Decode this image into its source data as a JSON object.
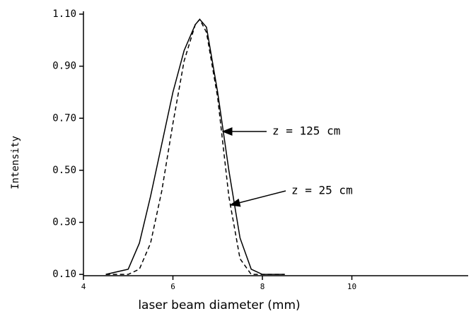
{
  "chart_data": {
    "type": "line",
    "x_label": "laser beam diameter (mm)",
    "y_label": "Intensity",
    "x": [
      4.5,
      5.0,
      5.25,
      5.5,
      5.75,
      6.0,
      6.25,
      6.5,
      6.6,
      6.75,
      7.0,
      7.25,
      7.5,
      7.75,
      8.0,
      8.5
    ],
    "series": [
      {
        "name": "z = 125 cm",
        "color": "#000000",
        "dash": "solid",
        "values": [
          0.1,
          0.12,
          0.22,
          0.4,
          0.6,
          0.8,
          0.96,
          1.06,
          1.08,
          1.05,
          0.8,
          0.5,
          0.24,
          0.12,
          0.1,
          0.1
        ]
      },
      {
        "name": "z = 25 cm",
        "color": "#000000",
        "dash": "dashed",
        "values": [
          0.1,
          0.1,
          0.12,
          0.22,
          0.42,
          0.68,
          0.92,
          1.06,
          1.08,
          1.03,
          0.78,
          0.4,
          0.16,
          0.1,
          0.1,
          0.1
        ]
      }
    ],
    "xlim": [
      4,
      12.6
    ],
    "xticks": [
      4,
      6,
      8,
      10
    ],
    "ylim": [
      0.095,
      1.1
    ],
    "yticks": [
      {
        "value": 0.1,
        "label": "0.10"
      },
      {
        "value": 0.3,
        "label": "0.30"
      },
      {
        "value": 0.5,
        "label": "0.50"
      },
      {
        "value": 0.7,
        "label": "0.70"
      },
      {
        "value": 0.9,
        "label": "0.90"
      },
      {
        "value": 1.1,
        "label": "1.10"
      }
    ]
  }
}
